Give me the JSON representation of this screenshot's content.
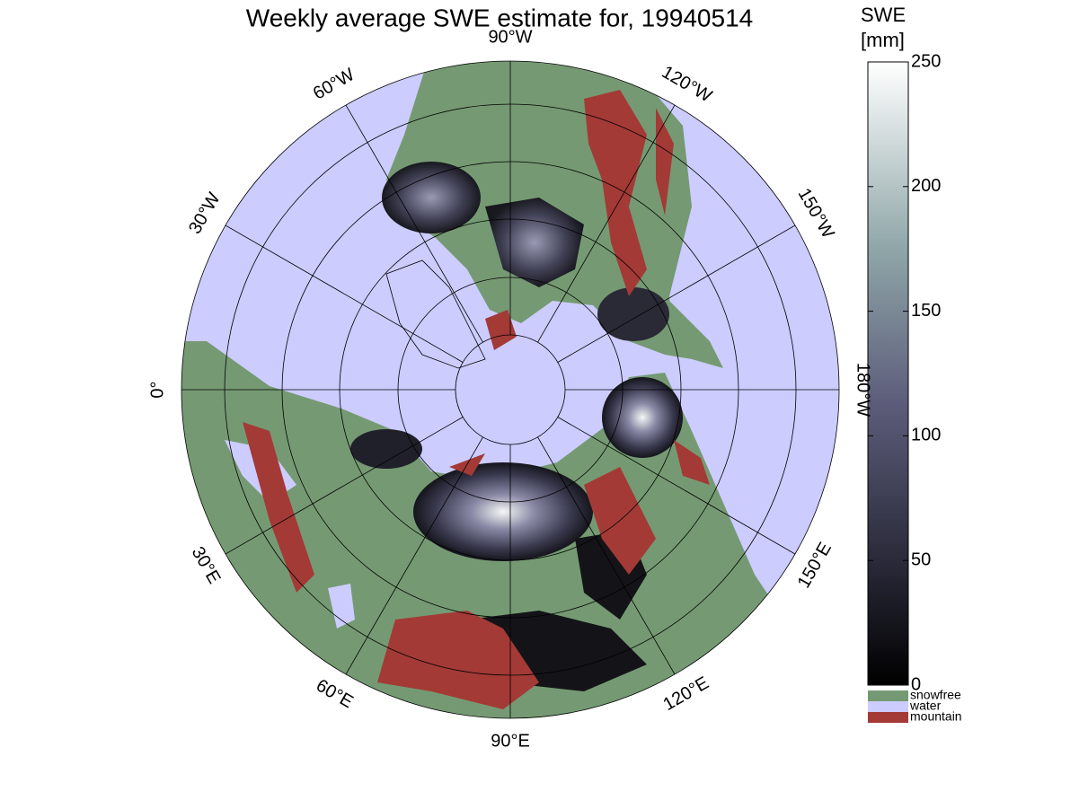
{
  "title": "Weekly average SWE estimate for, 19940514",
  "meridian_labels": [
    "0°",
    "30°W",
    "60°W",
    "90°W",
    "120°W",
    "150°W",
    "180°W",
    "150°E",
    "120°E",
    "90°E",
    "60°E",
    "30°E"
  ],
  "colorbar": {
    "label": [
      "SWE",
      "[mm]"
    ],
    "lim": [
      0,
      250
    ],
    "ticks": [
      0,
      50,
      100,
      150,
      200,
      250
    ]
  },
  "legend": [
    {
      "name": "snowfree",
      "color": "#759a73"
    },
    {
      "name": "water",
      "color": "#ccccff"
    },
    {
      "name": "mountain",
      "color": "#a33a36"
    }
  ]
}
